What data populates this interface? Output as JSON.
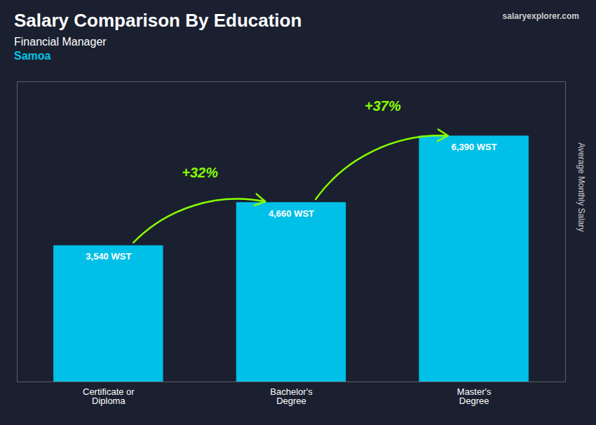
{
  "chart_data": {
    "type": "bar",
    "title": "Salary Comparison By Education",
    "subtitle": [
      "Financial Manager",
      "Samoa"
    ],
    "ylabel": "Average Monthly Salary",
    "categories": [
      "Certificate or\nDiploma",
      "Bachelor's\nDegree",
      "Master's\nDegree"
    ],
    "values": [
      3540,
      4660,
      6390
    ],
    "value_labels": [
      "3,540 WST",
      "4,660 WST",
      "6,390 WST"
    ],
    "data_labels": true,
    "color": "#00c0e8",
    "ylim": [
      0,
      7800
    ],
    "yticks": [],
    "tick_labels": "x",
    "grid": false,
    "annotations": [
      {
        "text": "+32%",
        "from": "Certificate or\nDiploma",
        "to": "Bachelor's\nDegree",
        "color": "#88ff00"
      },
      {
        "text": "+37%",
        "from": "Bachelor's\nDegree",
        "to": "Master's\nDegree",
        "color": "#88ff00"
      },
      {
        "text": "salaryexplorer.com"
      }
    ]
  }
}
